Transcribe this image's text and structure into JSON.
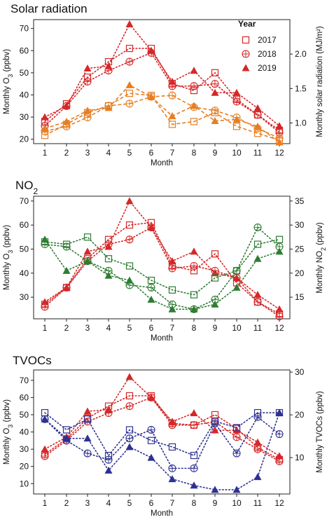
{
  "colors": {
    "o3": "#d62728",
    "solar": "#e67e22",
    "no2": "#2e7d32",
    "tvoc": "#2e3192"
  },
  "legend": {
    "title": "Year",
    "labels": [
      "2017",
      "2018",
      "2019"
    ],
    "markers": [
      "square-open",
      "circle-plus",
      "triangle-filled"
    ]
  },
  "chart_data": [
    {
      "type": "line",
      "title": "Solar radiation",
      "xlabel": "Month",
      "ylabel_left": "Monthly O3 (ppbv)",
      "ylabel_right": "Monthly solar radiation (MJ/m2)",
      "categories": [
        1,
        2,
        3,
        4,
        5,
        6,
        7,
        8,
        9,
        10,
        11,
        12
      ],
      "ylim_left": [
        18,
        74
      ],
      "ylim_right": [
        0.7,
        2.5
      ],
      "yticks_left": [
        20,
        30,
        40,
        50,
        60,
        70
      ],
      "yticks_right": [
        1.0,
        1.5,
        2.0
      ],
      "series": [
        {
          "group": "o3",
          "axis": "left",
          "name": "2017",
          "marker": "square-open",
          "values": [
            28,
            36,
            48,
            55,
            61,
            61,
            45,
            42,
            50,
            38,
            31,
            24
          ]
        },
        {
          "group": "o3",
          "axis": "left",
          "name": "2018",
          "marker": "circle-plus",
          "values": [
            26,
            35,
            46,
            51,
            55,
            59,
            44,
            44,
            45,
            37,
            31,
            23
          ]
        },
        {
          "group": "o3",
          "axis": "left",
          "name": "2019",
          "marker": "triangle-filled",
          "values": [
            30,
            35,
            52,
            53,
            72,
            60,
            46,
            51,
            41,
            41,
            34,
            26
          ]
        },
        {
          "group": "secondary",
          "axis": "right",
          "name": "2017",
          "marker": "square-open",
          "values": [
            0.82,
            0.98,
            1.15,
            1.25,
            1.43,
            1.4,
            0.98,
            1.02,
            1.15,
            0.95,
            0.85,
            0.75
          ]
        },
        {
          "group": "secondary",
          "axis": "right",
          "name": "2018",
          "marker": "circle-plus",
          "values": [
            0.88,
            0.95,
            1.08,
            1.25,
            1.28,
            1.38,
            1.4,
            1.23,
            1.18,
            1.08,
            0.92,
            0.78
          ]
        },
        {
          "group": "secondary",
          "axis": "right",
          "name": "2019",
          "marker": "triangle-filled",
          "values": [
            0.92,
            1.02,
            1.18,
            1.22,
            1.55,
            1.38,
            1.1,
            1.25,
            1.03,
            1.05,
            0.95,
            0.72
          ]
        }
      ]
    },
    {
      "type": "line",
      "title": "NO2",
      "xlabel": "Month",
      "ylabel_left": "Monthly O3 (ppbv)",
      "ylabel_right": "Monthly NO2 (ppbv)",
      "categories": [
        1,
        2,
        3,
        4,
        5,
        6,
        7,
        8,
        9,
        10,
        11,
        12
      ],
      "ylim_left": [
        21,
        72
      ],
      "ylim_right": [
        10.5,
        36
      ],
      "yticks_left": [
        30,
        40,
        50,
        60,
        70
      ],
      "yticks_right": [
        15,
        20,
        25,
        30,
        35
      ],
      "series": [
        {
          "group": "o3",
          "axis": "left",
          "name": "2017",
          "marker": "square-open",
          "values": [
            27,
            34,
            46,
            54,
            60,
            61,
            43,
            41,
            48,
            36,
            28,
            23
          ]
        },
        {
          "group": "o3",
          "axis": "left",
          "name": "2018",
          "marker": "circle-plus",
          "values": [
            26,
            34,
            45,
            52,
            54,
            59,
            42,
            43,
            41,
            38,
            28,
            22
          ]
        },
        {
          "group": "o3",
          "axis": "left",
          "name": "2019",
          "marker": "triangle-filled",
          "values": [
            28,
            34,
            49,
            51,
            70,
            59,
            45,
            49,
            40,
            38,
            31,
            25
          ]
        },
        {
          "group": "secondary",
          "axis": "right",
          "name": "2017",
          "marker": "square-open",
          "values": [
            26.5,
            26,
            27.5,
            23,
            21.5,
            18.5,
            16.5,
            15.5,
            19,
            20.5,
            26,
            27
          ]
        },
        {
          "group": "secondary",
          "axis": "right",
          "name": "2018",
          "marker": "circle-plus",
          "values": [
            26,
            25.5,
            22.5,
            20.5,
            17.5,
            17,
            13.5,
            12.5,
            14.5,
            20.5,
            29.5,
            25.5
          ]
        },
        {
          "group": "secondary",
          "axis": "right",
          "name": "2019",
          "marker": "triangle-filled",
          "values": [
            27,
            20.5,
            22.5,
            19.5,
            18.5,
            14.5,
            12.5,
            12.5,
            13.5,
            17,
            23,
            24.5
          ]
        }
      ]
    },
    {
      "type": "line",
      "title": "TVOCs",
      "xlabel": "Month",
      "ylabel_left": "Monthly O3 (ppbv)",
      "ylabel_right": "Monthly TVOCs (ppbv)",
      "categories": [
        1,
        2,
        3,
        4,
        5,
        6,
        7,
        8,
        9,
        10,
        11,
        12
      ],
      "ylim_left": [
        4,
        76
      ],
      "ylim_right": [
        1.5,
        30.5
      ],
      "yticks_left": [
        10,
        20,
        30,
        40,
        50,
        60,
        70
      ],
      "yticks_right": [
        10,
        20,
        30
      ],
      "series": [
        {
          "group": "o3",
          "axis": "left",
          "name": "2017",
          "marker": "square-open",
          "values": [
            27,
            36,
            48,
            55,
            61,
            61,
            45,
            44,
            50,
            42,
            31,
            24
          ]
        },
        {
          "group": "o3",
          "axis": "left",
          "name": "2018",
          "marker": "circle-plus",
          "values": [
            26,
            35,
            46,
            51,
            55,
            60,
            44,
            44,
            46,
            37,
            30,
            23
          ]
        },
        {
          "group": "o3",
          "axis": "left",
          "name": "2019",
          "marker": "triangle-filled",
          "values": [
            30,
            37,
            52,
            53,
            72,
            60,
            46,
            51,
            41,
            41,
            34,
            26
          ]
        },
        {
          "group": "secondary",
          "axis": "right",
          "name": "2017",
          "marker": "square-open",
          "values": [
            20.5,
            16.5,
            19,
            10.5,
            16.5,
            14,
            12.5,
            10.5,
            18.5,
            17,
            20.5,
            20.5
          ]
        },
        {
          "group": "secondary",
          "axis": "right",
          "name": "2018",
          "marker": "circle-plus",
          "values": [
            19,
            14,
            11,
            9.5,
            14.5,
            16.5,
            7.5,
            7.5,
            18,
            11,
            19.5,
            15.5
          ]
        },
        {
          "group": "secondary",
          "axis": "right",
          "name": "2019",
          "marker": "triangle-filled",
          "values": [
            19,
            14.5,
            14.5,
            7,
            12.5,
            10,
            5,
            3.5,
            2.5,
            2.5,
            5.5,
            20.5
          ]
        }
      ]
    }
  ]
}
